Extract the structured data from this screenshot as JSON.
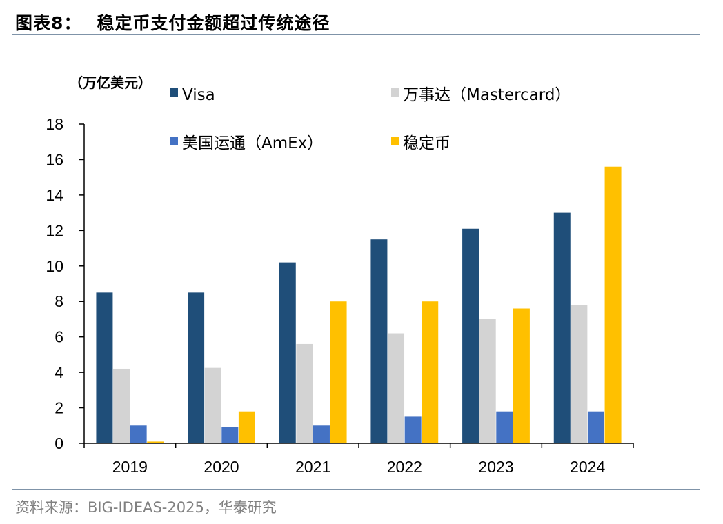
{
  "header": {
    "title_prefix": "图表8：",
    "title_text": "稳定币支付金额超过传统途径"
  },
  "footer": {
    "source": "资料来源：BIG-IDEAS-2025，华泰研究"
  },
  "chart_data": {
    "type": "bar",
    "title": "稳定币支付金额超过传统途径",
    "unit_label": "（万亿美元）",
    "xlabel": "",
    "ylabel": "（万亿美元）",
    "categories": [
      "2019",
      "2020",
      "2021",
      "2022",
      "2023",
      "2024"
    ],
    "ylim": [
      0,
      18
    ],
    "yticks": [
      0,
      2,
      4,
      6,
      8,
      10,
      12,
      14,
      16,
      18
    ],
    "grid": false,
    "legend_position": "top",
    "series": [
      {
        "name": "Visa",
        "color": "#1f4e79",
        "values": [
          8.5,
          8.5,
          10.2,
          11.5,
          12.1,
          13.0
        ]
      },
      {
        "name": "万事达（Mastercard）",
        "color": "#d3d3d3",
        "values": [
          4.2,
          4.25,
          5.6,
          6.2,
          7.0,
          7.8
        ]
      },
      {
        "name": "美国运通（AmEx）",
        "color": "#4472c4",
        "values": [
          1.0,
          0.9,
          1.0,
          1.5,
          1.8,
          1.8
        ]
      },
      {
        "name": "稳定币",
        "color": "#ffc000",
        "values": [
          0.1,
          1.8,
          8.0,
          8.0,
          7.6,
          15.6
        ]
      }
    ]
  }
}
